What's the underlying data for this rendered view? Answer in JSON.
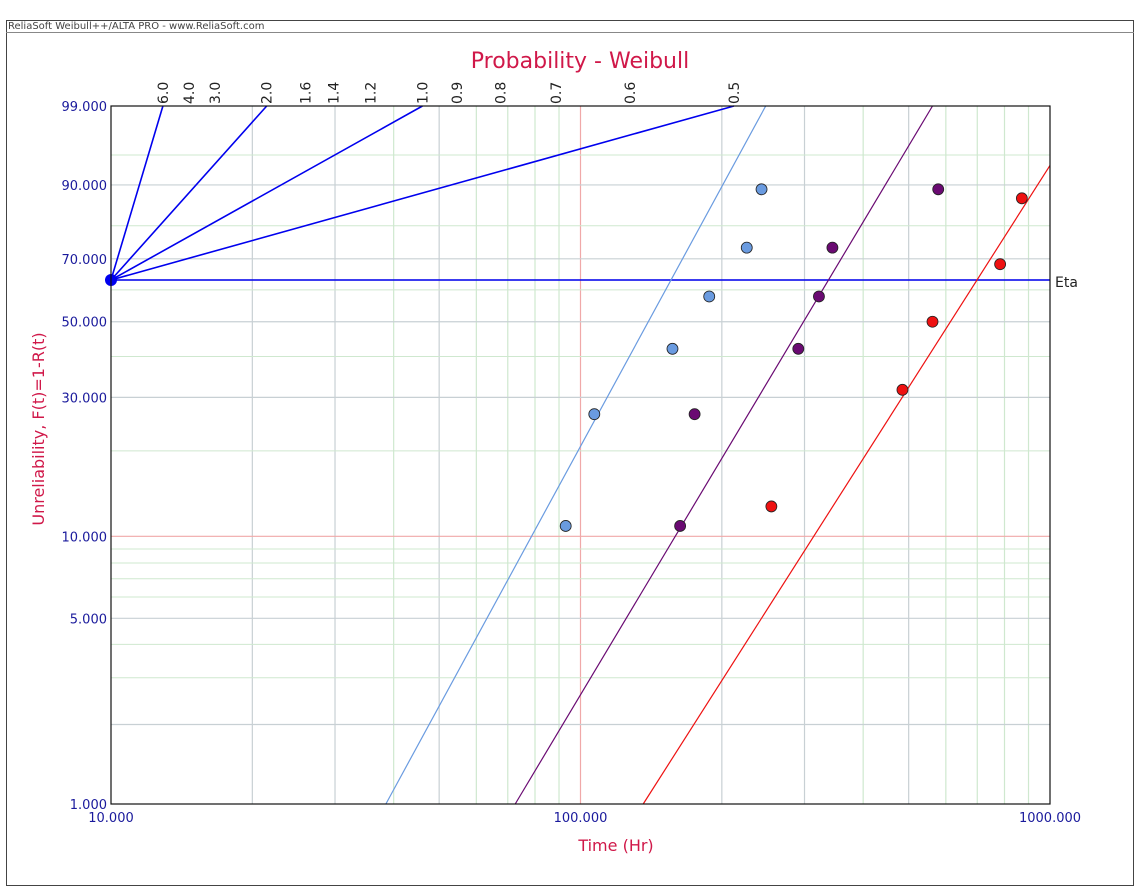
{
  "app": {
    "banner": "ReliaSoft Weibull++/ALTA PRO - www.ReliaSoft.com"
  },
  "chart_data": {
    "type": "scatter",
    "title": "Probability - Weibull",
    "xlabel": "Time (Hr)",
    "ylabel": "Unreliability, F(t)=1-R(t)",
    "x_scale": "log",
    "y_scale": "weibull",
    "xlim": [
      10,
      1000
    ],
    "ylim": [
      1,
      99
    ],
    "x_tick_labels": [
      "10.000",
      "100.000",
      "1000.000"
    ],
    "y_ticks": [
      1,
      5,
      10,
      30,
      50,
      70,
      90,
      99
    ],
    "y_tick_labels": [
      "1.000",
      "5.000",
      "10.000",
      "30.000",
      "50.000",
      "70.000",
      "90.000",
      "99.000"
    ],
    "beta_scale": {
      "labels": [
        "6.0",
        "4.0",
        "3.0",
        "2.0",
        "1.6",
        "1.4",
        "1.2",
        "1.0",
        "0.9",
        "0.8",
        "0.7",
        "0.6",
        "0.5"
      ],
      "drawn_lines": [
        6.0,
        2.0,
        1.0,
        0.5
      ]
    },
    "eta_label": "Eta",
    "eta_level": 63.2,
    "colors": {
      "eta_lines": "#0000ee",
      "grid_green": "#cfe8cf",
      "grid_gray": "#c8d0d4",
      "grid_red": "#f0a8a8",
      "title": "#d01849",
      "ticks": "#1a1a9c"
    },
    "series": [
      {
        "color": "#6a9be0",
        "points": [
          {
            "x": 93,
            "y": 10.9
          },
          {
            "x": 107,
            "y": 26.5
          },
          {
            "x": 157,
            "y": 42.1
          },
          {
            "x": 188,
            "y": 57.9
          },
          {
            "x": 226,
            "y": 73.5
          },
          {
            "x": 243,
            "y": 89.1
          }
        ],
        "line": [
          {
            "x": 38.5,
            "y": 1
          },
          {
            "x": 248,
            "y": 99
          }
        ]
      },
      {
        "color": "#6a0a72",
        "points": [
          {
            "x": 163,
            "y": 10.9
          },
          {
            "x": 175,
            "y": 26.5
          },
          {
            "x": 291,
            "y": 42.1
          },
          {
            "x": 322,
            "y": 57.9
          },
          {
            "x": 344,
            "y": 73.5
          },
          {
            "x": 578,
            "y": 89.1
          }
        ],
        "line": [
          {
            "x": 72.6,
            "y": 1
          },
          {
            "x": 562,
            "y": 99
          }
        ]
      },
      {
        "color": "#ee1111",
        "points": [
          {
            "x": 255,
            "y": 12.8
          },
          {
            "x": 485,
            "y": 31.7
          },
          {
            "x": 562,
            "y": 50.0
          },
          {
            "x": 783,
            "y": 68.3
          },
          {
            "x": 871,
            "y": 87.1
          }
        ],
        "line": [
          {
            "x": 136,
            "y": 1
          },
          {
            "x": 1000,
            "y": 93.5
          }
        ]
      }
    ]
  }
}
